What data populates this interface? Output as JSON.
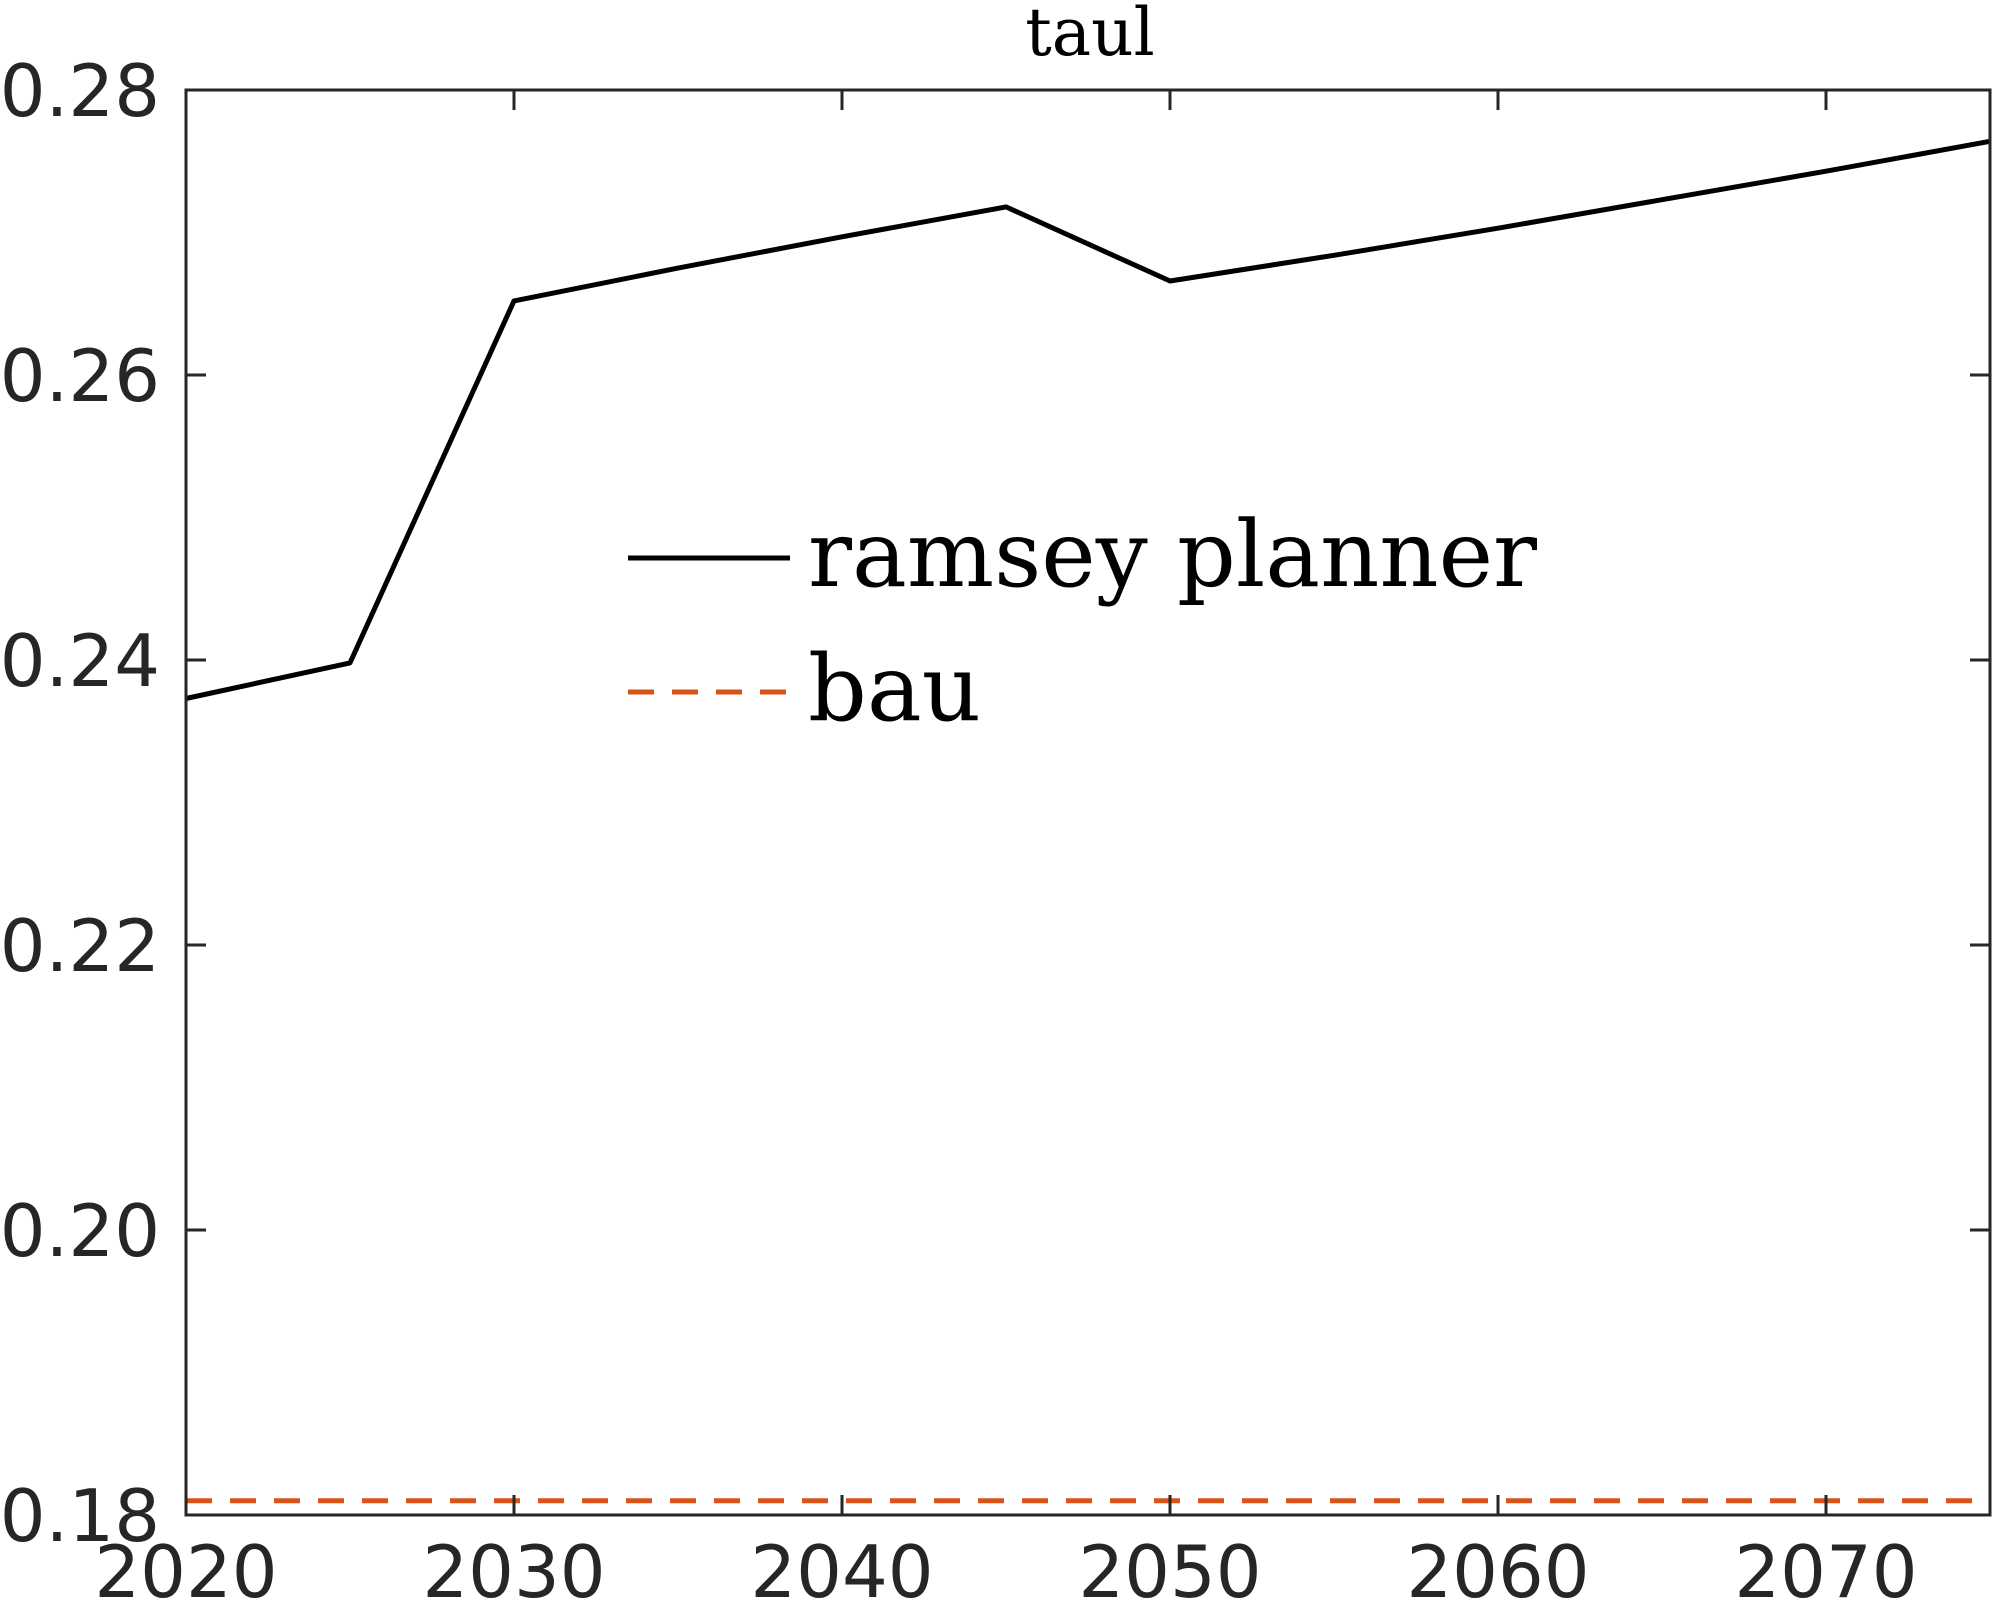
{
  "chart_data": {
    "type": "line",
    "title": "taul",
    "xlabel": "",
    "ylabel": "",
    "xlim": [
      2020,
      2075
    ],
    "ylim": [
      0.18,
      0.28
    ],
    "xticks": [
      2020,
      2030,
      2040,
      2050,
      2060,
      2070
    ],
    "xtick_labels": [
      "2020",
      "2030",
      "2040",
      "2050",
      "2060",
      "2070"
    ],
    "yticks": [
      0.18,
      0.2,
      0.22,
      0.24,
      0.26,
      0.28
    ],
    "ytick_labels": [
      "0.18",
      "0.20",
      "0.22",
      "0.24",
      "0.26",
      "0.28"
    ],
    "grid": false,
    "legend_position": "center-left",
    "series": [
      {
        "name": "ramsey planner",
        "color": "#000000",
        "style": "solid",
        "x": [
          2020,
          2025,
          2030,
          2035,
          2040,
          2045,
          2050,
          2055,
          2060,
          2065,
          2070,
          2075
        ],
        "y": [
          0.2373,
          0.2398,
          0.2652,
          0.2675,
          0.2697,
          0.2718,
          0.2666,
          0.2684,
          0.2703,
          0.2723,
          0.2743,
          0.2764
        ]
      },
      {
        "name": "bau",
        "color": "#D95319",
        "style": "dashed",
        "x": [
          2020,
          2075
        ],
        "y": [
          0.181,
          0.181
        ]
      }
    ]
  }
}
